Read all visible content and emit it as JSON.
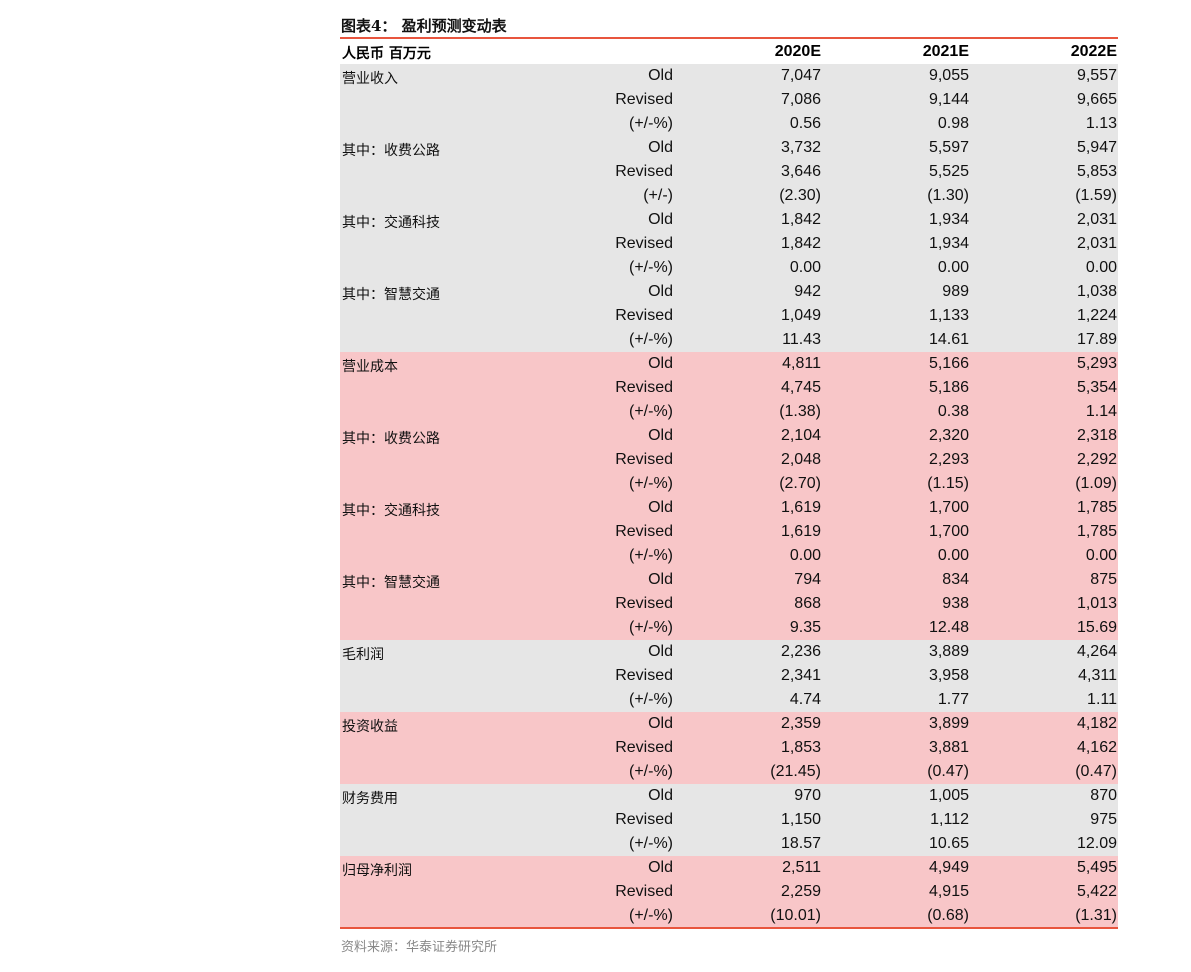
{
  "title": "图表4：  盈利预测变动表",
  "header": {
    "unit": "人民币 百万元",
    "years": [
      "2020E",
      "2021E",
      "2022E"
    ]
  },
  "colors": {
    "gray": "#e6e6e6",
    "pink": "#f8c6c8",
    "rule": "#e8553e"
  },
  "groups": [
    {
      "name": "营业收入",
      "color": "gray",
      "rows": [
        [
          "Old",
          "7,047",
          "9,055",
          "9,557"
        ],
        [
          "Revised",
          "7,086",
          "9,144",
          "9,665"
        ],
        [
          "(+/-%)",
          "0.56",
          "0.98",
          "1.13"
        ]
      ]
    },
    {
      "name": "其中：收费公路",
      "color": "gray",
      "rows": [
        [
          "Old",
          "3,732",
          "5,597",
          "5,947"
        ],
        [
          "Revised",
          "3,646",
          "5,525",
          "5,853"
        ],
        [
          "(+/-)",
          "(2.30)",
          "(1.30)",
          "(1.59)"
        ]
      ]
    },
    {
      "name": "其中：交通科技",
      "color": "gray",
      "rows": [
        [
          "Old",
          "1,842",
          "1,934",
          "2,031"
        ],
        [
          "Revised",
          "1,842",
          "1,934",
          "2,031"
        ],
        [
          "(+/-%)",
          "0.00",
          "0.00",
          "0.00"
        ]
      ]
    },
    {
      "name": "其中：智慧交通",
      "color": "gray",
      "rows": [
        [
          "Old",
          "942",
          "989",
          "1,038"
        ],
        [
          "Revised",
          "1,049",
          "1,133",
          "1,224"
        ],
        [
          "(+/-%)",
          "11.43",
          "14.61",
          "17.89"
        ]
      ]
    },
    {
      "name": "营业成本",
      "color": "pink",
      "rows": [
        [
          "Old",
          "4,811",
          "5,166",
          "5,293"
        ],
        [
          "Revised",
          "4,745",
          "5,186",
          "5,354"
        ],
        [
          "(+/-%)",
          "(1.38)",
          "0.38",
          "1.14"
        ]
      ]
    },
    {
      "name": "其中：收费公路",
      "color": "pink",
      "rows": [
        [
          "Old",
          "2,104",
          "2,320",
          "2,318"
        ],
        [
          "Revised",
          "2,048",
          "2,293",
          "2,292"
        ],
        [
          "(+/-%)",
          "(2.70)",
          "(1.15)",
          "(1.09)"
        ]
      ]
    },
    {
      "name": "其中：交通科技",
      "color": "pink",
      "rows": [
        [
          "Old",
          "1,619",
          "1,700",
          "1,785"
        ],
        [
          "Revised",
          "1,619",
          "1,700",
          "1,785"
        ],
        [
          "(+/-%)",
          "0.00",
          "0.00",
          "0.00"
        ]
      ]
    },
    {
      "name": "其中：智慧交通",
      "color": "pink",
      "rows": [
        [
          "Old",
          "794",
          "834",
          "875"
        ],
        [
          "Revised",
          "868",
          "938",
          "1,013"
        ],
        [
          "(+/-%)",
          "9.35",
          "12.48",
          "15.69"
        ]
      ]
    },
    {
      "name": "毛利润",
      "color": "gray",
      "rows": [
        [
          "Old",
          "2,236",
          "3,889",
          "4,264"
        ],
        [
          "Revised",
          "2,341",
          "3,958",
          "4,311"
        ],
        [
          "(+/-%)",
          "4.74",
          "1.77",
          "1.11"
        ]
      ]
    },
    {
      "name": "投资收益",
      "color": "pink",
      "rows": [
        [
          "Old",
          "2,359",
          "3,899",
          "4,182"
        ],
        [
          "Revised",
          "1,853",
          "3,881",
          "4,162"
        ],
        [
          "(+/-%)",
          "(21.45)",
          "(0.47)",
          "(0.47)"
        ]
      ]
    },
    {
      "name": "财务费用",
      "color": "gray",
      "rows": [
        [
          "Old",
          "970",
          "1,005",
          "870"
        ],
        [
          "Revised",
          "1,150",
          "1,112",
          "975"
        ],
        [
          "(+/-%)",
          "18.57",
          "10.65",
          "12.09"
        ]
      ]
    },
    {
      "name": "归母净利润",
      "color": "pink",
      "rows": [
        [
          "Old",
          "2,511",
          "4,949",
          "5,495"
        ],
        [
          "Revised",
          "2,259",
          "4,915",
          "5,422"
        ],
        [
          "(+/-%)",
          "(10.01)",
          "(0.68)",
          "(1.31)"
        ]
      ]
    }
  ],
  "source": "资料来源：华泰证券研究所"
}
